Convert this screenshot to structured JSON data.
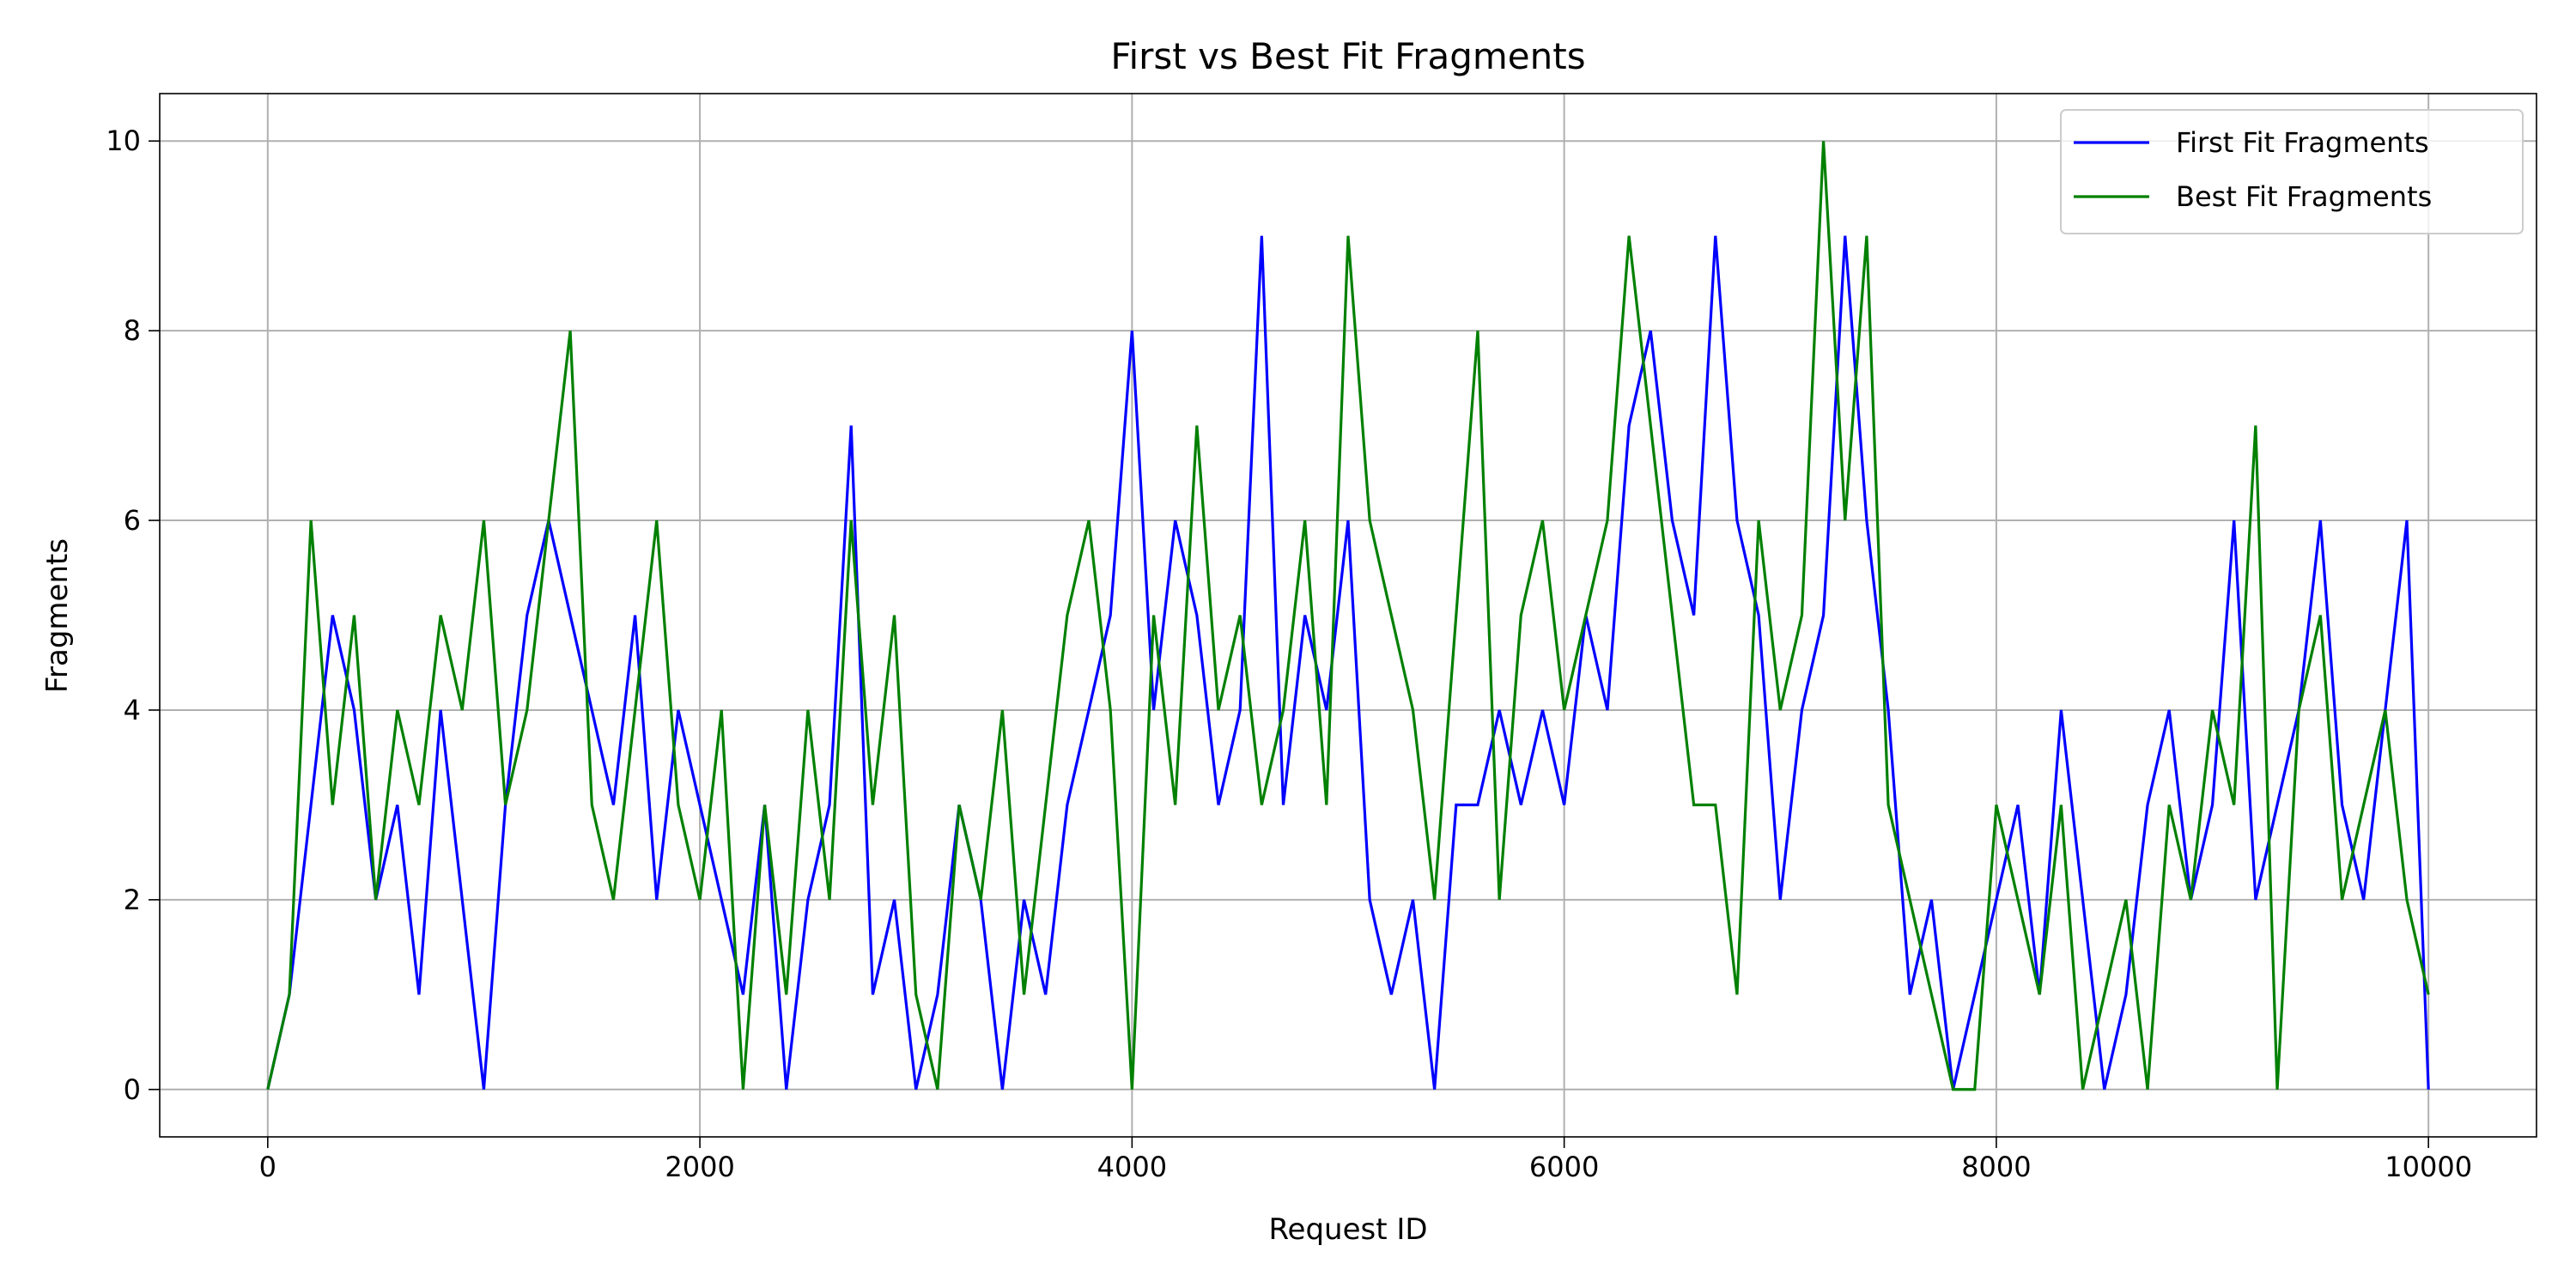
{
  "chart_data": {
    "type": "line",
    "title": "First vs Best Fit Fragments",
    "x_label": "Request ID",
    "y_label": "Fragments",
    "x": [
      0,
      100,
      200,
      300,
      400,
      500,
      600,
      700,
      800,
      900,
      1000,
      1100,
      1200,
      1300,
      1400,
      1500,
      1600,
      1700,
      1800,
      1900,
      2000,
      2100,
      2200,
      2300,
      2400,
      2500,
      2600,
      2700,
      2800,
      2900,
      3000,
      3100,
      3200,
      3300,
      3400,
      3500,
      3600,
      3700,
      3800,
      3900,
      4000,
      4100,
      4200,
      4300,
      4400,
      4500,
      4600,
      4700,
      4800,
      4900,
      5000,
      5100,
      5200,
      5300,
      5400,
      5500,
      5600,
      5700,
      5800,
      5900,
      6000,
      6100,
      6200,
      6300,
      6400,
      6500,
      6600,
      6700,
      6800,
      6900,
      7000,
      7100,
      7200,
      7300,
      7400,
      7500,
      7600,
      7700,
      7800,
      7900,
      8000,
      8100,
      8200,
      8300,
      8400,
      8500,
      8600,
      8700,
      8800,
      8900,
      9000,
      9100,
      9200,
      9300,
      9400,
      9500,
      9600,
      9700,
      9800,
      9900,
      10000
    ],
    "series": [
      {
        "name": "First Fit Fragments",
        "color": "#0000ff",
        "values": [
          0,
          1,
          3,
          5,
          4,
          2,
          3,
          1,
          4,
          2,
          0,
          3,
          5,
          6,
          5,
          4,
          3,
          5,
          2,
          4,
          3,
          2,
          1,
          3,
          0,
          2,
          3,
          7,
          1,
          2,
          0,
          1,
          3,
          2,
          0,
          2,
          1,
          3,
          4,
          5,
          8,
          4,
          6,
          5,
          3,
          4,
          9,
          3,
          5,
          4,
          6,
          2,
          1,
          2,
          0,
          3,
          3,
          4,
          3,
          4,
          3,
          5,
          4,
          7,
          8,
          6,
          5,
          9,
          6,
          5,
          2,
          4,
          5,
          9,
          6,
          4,
          1,
          2,
          0,
          1,
          2,
          3,
          1,
          4,
          2,
          0,
          1,
          3,
          4,
          2,
          3,
          6,
          2,
          3,
          4,
          6,
          3,
          2,
          4,
          6,
          0
        ]
      },
      {
        "name": "Best Fit Fragments",
        "color": "#008000",
        "values": [
          0,
          1,
          6,
          3,
          5,
          2,
          4,
          3,
          5,
          4,
          6,
          3,
          4,
          6,
          8,
          3,
          2,
          4,
          6,
          3,
          2,
          4,
          0,
          3,
          1,
          4,
          2,
          6,
          3,
          5,
          1,
          0,
          3,
          2,
          4,
          1,
          3,
          5,
          6,
          4,
          0,
          5,
          3,
          7,
          4,
          5,
          3,
          4,
          6,
          3,
          9,
          6,
          5,
          4,
          2,
          5,
          8,
          2,
          5,
          6,
          4,
          5,
          6,
          9,
          7,
          5,
          3,
          3,
          1,
          6,
          4,
          5,
          10,
          6,
          9,
          3,
          2,
          1,
          0,
          0,
          3,
          2,
          1,
          3,
          0,
          1,
          2,
          0,
          3,
          2,
          4,
          3,
          7,
          0,
          4,
          5,
          2,
          3,
          4,
          2,
          1
        ]
      }
    ],
    "xlim": [
      -500,
      10500
    ],
    "ylim": [
      -0.5,
      10.5
    ],
    "xticks": [
      0,
      2000,
      4000,
      6000,
      8000,
      10000
    ],
    "yticks": [
      0,
      2,
      4,
      6,
      8,
      10
    ],
    "grid": true,
    "legend": "upper right"
  }
}
